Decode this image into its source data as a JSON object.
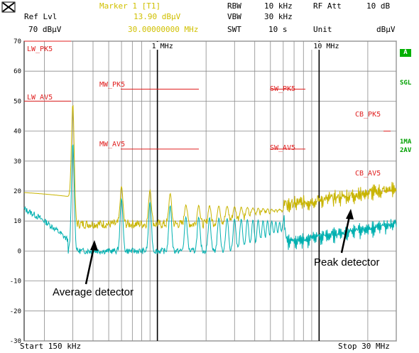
{
  "header": {
    "ref_lvl_label": "Ref Lvl",
    "ref_lvl_value": "70 dBµV",
    "marker_label": "Marker 1 [T1]",
    "marker_level": "13.90 dBµV",
    "marker_freq": "30.00000000 MHz",
    "rbw_label": "RBW",
    "rbw_value": "10 kHz",
    "vbw_label": "VBW",
    "vbw_value": "30 kHz",
    "swt_label": "SWT",
    "swt_value": "10 s",
    "rfatt_label": "RF Att",
    "rfatt_value": "10 dB",
    "unit_label": "Unit",
    "unit_value": "dBµV"
  },
  "side": {
    "a_label": "A",
    "sgl_label": "SGL",
    "trace1_label": "1MA",
    "trace2_label": "2AV"
  },
  "footer": {
    "start": "Start 150 kHz",
    "stop": "Stop 30 MHz"
  },
  "annotations": {
    "average": "Average detector",
    "peak": "Peak detector"
  },
  "colors": {
    "peak_trace": "#c8b400",
    "avg_trace": "#00b0b0",
    "limit_lines": "#e02020",
    "grid": "#808080"
  },
  "chart_data": {
    "type": "line",
    "xscale": "log",
    "x_range_hz": [
      150000,
      30000000
    ],
    "y_range": [
      -30,
      70
    ],
    "y_unit": "dBµV",
    "y_ticks": [
      "70",
      "60",
      "50",
      "40",
      "30",
      "20",
      "10",
      "0",
      "-10",
      "-20",
      "-30"
    ],
    "x_tick_labels": [
      "1 MHz",
      "10 MHz"
    ],
    "limit_lines": [
      {
        "name": "LW_PK5",
        "y": 70
      },
      {
        "name": "LW_AV5",
        "y": 50
      },
      {
        "name": "MW_PK5",
        "y": 54
      },
      {
        "name": "MW_AV5",
        "y": 34
      },
      {
        "name": "SW_PK5",
        "y": 54
      },
      {
        "name": "SW_AV5",
        "y": 34
      },
      {
        "name": "CB_PK5",
        "y": 40
      },
      {
        "name": "CB_AV5",
        "y": 20
      }
    ]
  }
}
